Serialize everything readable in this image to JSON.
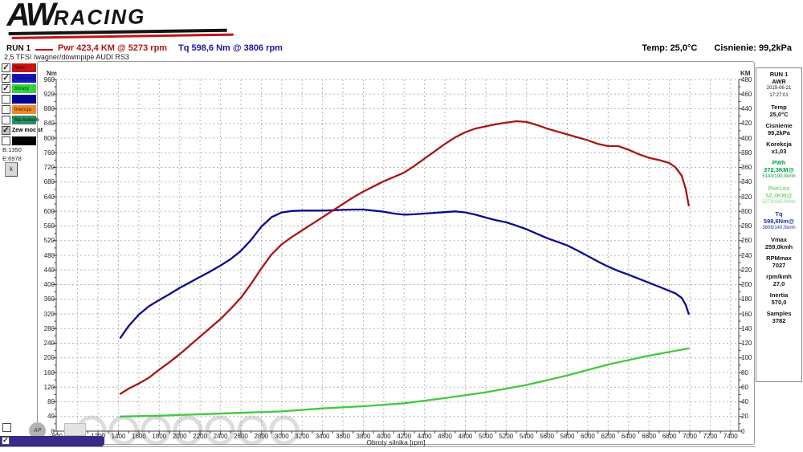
{
  "logo": {
    "aw": "AW",
    "racing": "RACING"
  },
  "header": {
    "run": "RUN 1",
    "power": "Pwr  423,4 KM @ 5273 rpm",
    "torque": "Tq 598,6 Nm @ 3806 rpm",
    "temp": "Temp: 25,0°C",
    "pressure": "Cisnienie: 99,2kPa",
    "subtitle": "2,5 TFSI /wagner/dowmpipe AUDI RS3"
  },
  "legend": {
    "items": [
      {
        "checked": true,
        "gray": false,
        "bar": "#c41414",
        "label": "Moc",
        "label_color": "#5a0a0a"
      },
      {
        "checked": true,
        "gray": false,
        "bar": "#1717c9",
        "label": "Moment",
        "label_color": "#0a0a70"
      },
      {
        "checked": true,
        "gray": false,
        "bar": "#35d23c",
        "label": "Straty",
        "label_color": "#0c6b14"
      },
      {
        "checked": false,
        "gray": false,
        "bar": "#00008f",
        "label": "",
        "label_color": "#ffffff"
      },
      {
        "checked": false,
        "gray": false,
        "bar": "#ef8a2a",
        "label": "Inercja",
        "label_color": "#7a3d05"
      },
      {
        "checked": false,
        "gray": false,
        "bar": "#2c8f63",
        "label": "Na kołach",
        "label_color": "#0b3d28"
      },
      {
        "checked": true,
        "gray": true,
        "bar": null,
        "label": "Zew moc st",
        "label_color": "#000000"
      },
      {
        "checked": false,
        "gray": false,
        "bar": "#000000",
        "label": "",
        "label_color": "#ffffff"
      }
    ],
    "begin": "B:1350",
    "end": "E:6978",
    "zoom_button": "k"
  },
  "info_panel": {
    "groups": [
      {
        "lines": [
          "RUN 1",
          "AWR",
          "2019-06-21",
          "17:27:01"
        ],
        "color": "#111111"
      },
      {
        "lines": [
          "Temp",
          "25,0°C"
        ],
        "color": "#111111"
      },
      {
        "lines": [
          "Cisnienie",
          "99,2kPa"
        ],
        "color": "#111111"
      },
      {
        "lines": [
          "Korekcja",
          "x1,03"
        ],
        "color": "#111111"
      },
      {
        "lines": [
          "PWh",
          "372,3KM@",
          "5143/190,0kmh"
        ],
        "color": "#00a040"
      },
      {
        "lines": [
          "PwrLos",
          "52,3KM@",
          "5273/195,0kmh"
        ],
        "color": "#82d482"
      },
      {
        "lines": [
          "Tq",
          "598,6Nm@",
          "3806/140,0kmh"
        ],
        "color": "#2233aa"
      },
      {
        "lines": [
          "Vmax",
          "259,0kmh"
        ],
        "color": "#111111"
      },
      {
        "lines": [
          "RPMmax",
          "7027"
        ],
        "color": "#111111"
      },
      {
        "lines": [
          "rpm/kmh",
          "27,0"
        ],
        "color": "#111111"
      },
      {
        "lines": [
          "Inertia",
          "570,0"
        ],
        "color": "#111111"
      },
      {
        "lines": [
          "Samples",
          "3782"
        ],
        "color": "#111111"
      }
    ]
  },
  "overlay": {
    "ap_label": "AP"
  },
  "chart_data": {
    "type": "line",
    "title": "",
    "xlabel": "Obroty silnika [rpm]",
    "grid": true,
    "x_ticks": [
      800,
      1000,
      1200,
      1400,
      1600,
      1800,
      2000,
      2200,
      2400,
      2600,
      2800,
      3000,
      3200,
      3400,
      3600,
      3800,
      4000,
      4200,
      4400,
      4600,
      4800,
      5000,
      5200,
      5400,
      5600,
      5800,
      6000,
      6200,
      6400,
      6600,
      6800,
      7000,
      7200,
      7400
    ],
    "xlim": [
      790,
      7480
    ],
    "y_left": {
      "label": "Nm",
      "min": 0,
      "max": 960,
      "ticks": [
        960,
        920,
        880,
        840,
        800,
        760,
        720,
        680,
        640,
        600,
        560,
        520,
        480,
        440,
        400,
        360,
        320,
        280,
        240,
        200,
        160,
        120,
        80,
        40,
        0
      ]
    },
    "y_right": {
      "label": "KM",
      "min": 0,
      "max": 480,
      "ticks": [
        480,
        460,
        440,
        420,
        400,
        380,
        360,
        340,
        320,
        300,
        280,
        260,
        240,
        220,
        200,
        180,
        160,
        140,
        120,
        100,
        80,
        60,
        40,
        20,
        0
      ]
    },
    "series": [
      {
        "id": "torque",
        "name": "Moment [Nm]",
        "color": "#0b0b8f",
        "axis": "left",
        "points": [
          [
            1420,
            255
          ],
          [
            1500,
            287
          ],
          [
            1600,
            318
          ],
          [
            1700,
            341
          ],
          [
            1800,
            358
          ],
          [
            1900,
            374
          ],
          [
            2000,
            391
          ],
          [
            2100,
            406
          ],
          [
            2200,
            421
          ],
          [
            2300,
            436
          ],
          [
            2400,
            452
          ],
          [
            2500,
            470
          ],
          [
            2600,
            492
          ],
          [
            2700,
            522
          ],
          [
            2800,
            558
          ],
          [
            2900,
            584
          ],
          [
            3000,
            597
          ],
          [
            3100,
            601
          ],
          [
            3200,
            602
          ],
          [
            3300,
            602
          ],
          [
            3400,
            602
          ],
          [
            3500,
            603
          ],
          [
            3600,
            604
          ],
          [
            3700,
            605
          ],
          [
            3800,
            605
          ],
          [
            3900,
            602
          ],
          [
            4000,
            599
          ],
          [
            4100,
            594
          ],
          [
            4200,
            591
          ],
          [
            4300,
            592
          ],
          [
            4400,
            594
          ],
          [
            4500,
            596
          ],
          [
            4600,
            598
          ],
          [
            4700,
            600
          ],
          [
            4800,
            597
          ],
          [
            4900,
            591
          ],
          [
            5000,
            583
          ],
          [
            5100,
            576
          ],
          [
            5200,
            570
          ],
          [
            5300,
            561
          ],
          [
            5400,
            551
          ],
          [
            5500,
            539
          ],
          [
            5600,
            527
          ],
          [
            5700,
            517
          ],
          [
            5800,
            507
          ],
          [
            5900,
            493
          ],
          [
            6000,
            478
          ],
          [
            6100,
            463
          ],
          [
            6200,
            449
          ],
          [
            6300,
            437
          ],
          [
            6400,
            427
          ],
          [
            6500,
            416
          ],
          [
            6600,
            405
          ],
          [
            6700,
            394
          ],
          [
            6800,
            383
          ],
          [
            6860,
            376
          ],
          [
            6920,
            364
          ],
          [
            6960,
            345
          ],
          [
            6990,
            320
          ]
        ]
      },
      {
        "id": "power",
        "name": "Moc [KM]",
        "color": "#a81616",
        "axis": "right",
        "points": [
          [
            1420,
            51
          ],
          [
            1500,
            58
          ],
          [
            1600,
            65
          ],
          [
            1700,
            73
          ],
          [
            1800,
            84
          ],
          [
            1900,
            94
          ],
          [
            2000,
            105
          ],
          [
            2100,
            117
          ],
          [
            2200,
            129
          ],
          [
            2300,
            141
          ],
          [
            2400,
            153
          ],
          [
            2500,
            167
          ],
          [
            2600,
            182
          ],
          [
            2700,
            201
          ],
          [
            2800,
            222
          ],
          [
            2900,
            241
          ],
          [
            3000,
            255
          ],
          [
            3100,
            265
          ],
          [
            3200,
            274
          ],
          [
            3300,
            283
          ],
          [
            3400,
            292
          ],
          [
            3500,
            301
          ],
          [
            3600,
            310
          ],
          [
            3700,
            319
          ],
          [
            3800,
            327
          ],
          [
            3900,
            334
          ],
          [
            4000,
            341
          ],
          [
            4100,
            347
          ],
          [
            4200,
            353
          ],
          [
            4300,
            362
          ],
          [
            4400,
            372
          ],
          [
            4500,
            382
          ],
          [
            4600,
            392
          ],
          [
            4700,
            401
          ],
          [
            4800,
            408
          ],
          [
            4900,
            413
          ],
          [
            5000,
            416
          ],
          [
            5100,
            419
          ],
          [
            5200,
            421
          ],
          [
            5300,
            423
          ],
          [
            5400,
            422
          ],
          [
            5500,
            418
          ],
          [
            5600,
            413
          ],
          [
            5700,
            409
          ],
          [
            5800,
            405
          ],
          [
            5900,
            401
          ],
          [
            6000,
            397
          ],
          [
            6100,
            392
          ],
          [
            6200,
            389
          ],
          [
            6300,
            389
          ],
          [
            6400,
            384
          ],
          [
            6500,
            378
          ],
          [
            6600,
            373
          ],
          [
            6700,
            370
          ],
          [
            6800,
            366
          ],
          [
            6860,
            360
          ],
          [
            6920,
            349
          ],
          [
            6960,
            331
          ],
          [
            6990,
            308
          ]
        ]
      },
      {
        "id": "losses",
        "name": "Straty [KM]",
        "color": "#41c941",
        "axis": "right",
        "points": [
          [
            1420,
            20
          ],
          [
            1800,
            21
          ],
          [
            2200,
            23
          ],
          [
            2600,
            25
          ],
          [
            3000,
            27
          ],
          [
            3400,
            31
          ],
          [
            3800,
            34
          ],
          [
            4200,
            38
          ],
          [
            4600,
            45
          ],
          [
            5000,
            53
          ],
          [
            5400,
            63
          ],
          [
            5800,
            76
          ],
          [
            6200,
            91
          ],
          [
            6600,
            103
          ],
          [
            6800,
            108
          ],
          [
            6990,
            113
          ]
        ]
      }
    ],
    "peaks": {
      "power": "423,4 KM @ 5273 rpm",
      "torque": "598,6 Nm @ 3806 rpm"
    }
  }
}
